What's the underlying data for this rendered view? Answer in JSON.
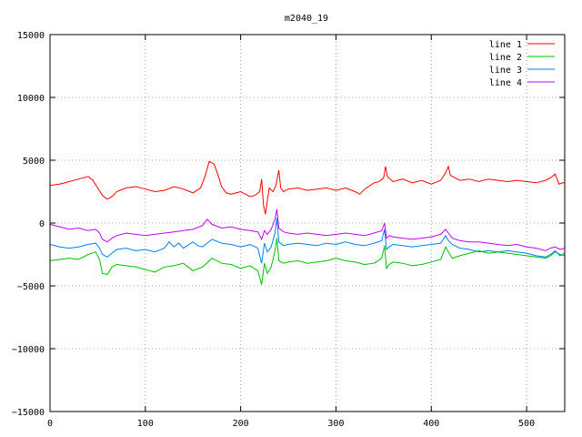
{
  "chart_data": {
    "type": "line",
    "title": "m2040_19",
    "xlabel": "",
    "ylabel": "",
    "xlim": [
      0,
      540
    ],
    "ylim": [
      -15000,
      15000
    ],
    "xticks": [
      0,
      100,
      200,
      300,
      400,
      500
    ],
    "yticks": [
      -15000,
      -10000,
      -5000,
      0,
      5000,
      10000,
      15000
    ],
    "xtick_labels": [
      "0",
      "100",
      "200",
      "300",
      "400",
      "500"
    ],
    "ytick_labels": [
      "−15000",
      "−10000",
      "−5000",
      "0",
      "5000",
      "10000",
      "15000"
    ],
    "grid": true,
    "legend_position": "top-right",
    "series": [
      {
        "name": "line 1",
        "color": "#ff0000",
        "points": [
          [
            0,
            3000
          ],
          [
            10,
            3100
          ],
          [
            20,
            3300
          ],
          [
            30,
            3500
          ],
          [
            40,
            3700
          ],
          [
            45,
            3400
          ],
          [
            50,
            2800
          ],
          [
            55,
            2200
          ],
          [
            60,
            1900
          ],
          [
            65,
            2100
          ],
          [
            70,
            2500
          ],
          [
            80,
            2800
          ],
          [
            90,
            2900
          ],
          [
            100,
            2700
          ],
          [
            110,
            2500
          ],
          [
            120,
            2600
          ],
          [
            130,
            2900
          ],
          [
            140,
            2700
          ],
          [
            150,
            2400
          ],
          [
            158,
            2800
          ],
          [
            163,
            3800
          ],
          [
            167,
            4900
          ],
          [
            172,
            4700
          ],
          [
            176,
            3900
          ],
          [
            180,
            2900
          ],
          [
            185,
            2400
          ],
          [
            190,
            2300
          ],
          [
            200,
            2500
          ],
          [
            210,
            2100
          ],
          [
            215,
            2200
          ],
          [
            220,
            2500
          ],
          [
            222,
            3500
          ],
          [
            224,
            1400
          ],
          [
            226,
            700
          ],
          [
            228,
            1800
          ],
          [
            230,
            2800
          ],
          [
            234,
            2500
          ],
          [
            237,
            3000
          ],
          [
            240,
            4200
          ],
          [
            242,
            2800
          ],
          [
            245,
            2500
          ],
          [
            250,
            2700
          ],
          [
            260,
            2800
          ],
          [
            270,
            2600
          ],
          [
            280,
            2700
          ],
          [
            290,
            2800
          ],
          [
            300,
            2600
          ],
          [
            310,
            2800
          ],
          [
            320,
            2500
          ],
          [
            325,
            2300
          ],
          [
            330,
            2700
          ],
          [
            340,
            3200
          ],
          [
            345,
            3300
          ],
          [
            350,
            3600
          ],
          [
            352,
            4500
          ],
          [
            354,
            3700
          ],
          [
            360,
            3300
          ],
          [
            370,
            3500
          ],
          [
            380,
            3200
          ],
          [
            390,
            3400
          ],
          [
            400,
            3100
          ],
          [
            410,
            3400
          ],
          [
            415,
            4000
          ],
          [
            418,
            4500
          ],
          [
            420,
            3800
          ],
          [
            430,
            3400
          ],
          [
            440,
            3500
          ],
          [
            450,
            3300
          ],
          [
            460,
            3500
          ],
          [
            470,
            3400
          ],
          [
            480,
            3300
          ],
          [
            490,
            3400
          ],
          [
            500,
            3300
          ],
          [
            510,
            3200
          ],
          [
            520,
            3400
          ],
          [
            525,
            3600
          ],
          [
            530,
            3900
          ],
          [
            534,
            3100
          ],
          [
            538,
            3200
          ],
          [
            540,
            3200
          ]
        ]
      },
      {
        "name": "line 2",
        "color": "#00c000",
        "points": [
          [
            0,
            -3000
          ],
          [
            10,
            -2900
          ],
          [
            20,
            -2800
          ],
          [
            30,
            -2900
          ],
          [
            40,
            -2500
          ],
          [
            48,
            -2300
          ],
          [
            52,
            -2900
          ],
          [
            55,
            -4000
          ],
          [
            60,
            -4100
          ],
          [
            65,
            -3500
          ],
          [
            70,
            -3300
          ],
          [
            80,
            -3400
          ],
          [
            90,
            -3500
          ],
          [
            100,
            -3700
          ],
          [
            110,
            -3900
          ],
          [
            120,
            -3500
          ],
          [
            130,
            -3400
          ],
          [
            140,
            -3200
          ],
          [
            150,
            -3800
          ],
          [
            160,
            -3500
          ],
          [
            170,
            -2800
          ],
          [
            180,
            -3200
          ],
          [
            190,
            -3300
          ],
          [
            200,
            -3600
          ],
          [
            210,
            -3400
          ],
          [
            218,
            -3800
          ],
          [
            222,
            -4900
          ],
          [
            225,
            -3200
          ],
          [
            228,
            -4000
          ],
          [
            232,
            -3500
          ],
          [
            236,
            -2200
          ],
          [
            238,
            -1200
          ],
          [
            240,
            -3000
          ],
          [
            245,
            -3200
          ],
          [
            250,
            -3100
          ],
          [
            260,
            -3000
          ],
          [
            270,
            -3200
          ],
          [
            280,
            -3100
          ],
          [
            290,
            -3000
          ],
          [
            300,
            -2800
          ],
          [
            310,
            -3000
          ],
          [
            320,
            -3100
          ],
          [
            330,
            -3300
          ],
          [
            340,
            -3200
          ],
          [
            348,
            -2800
          ],
          [
            351,
            -1800
          ],
          [
            353,
            -3600
          ],
          [
            356,
            -3300
          ],
          [
            360,
            -3100
          ],
          [
            370,
            -3200
          ],
          [
            380,
            -3400
          ],
          [
            390,
            -3300
          ],
          [
            400,
            -3100
          ],
          [
            410,
            -2900
          ],
          [
            415,
            -1900
          ],
          [
            418,
            -2300
          ],
          [
            422,
            -2800
          ],
          [
            430,
            -2600
          ],
          [
            440,
            -2400
          ],
          [
            450,
            -2200
          ],
          [
            460,
            -2400
          ],
          [
            470,
            -2300
          ],
          [
            480,
            -2400
          ],
          [
            490,
            -2500
          ],
          [
            500,
            -2600
          ],
          [
            510,
            -2700
          ],
          [
            520,
            -2800
          ],
          [
            525,
            -2600
          ],
          [
            530,
            -2300
          ],
          [
            535,
            -2500
          ],
          [
            540,
            -2600
          ]
        ]
      },
      {
        "name": "line 3",
        "color": "#0080ff",
        "points": [
          [
            0,
            -1700
          ],
          [
            10,
            -1900
          ],
          [
            20,
            -2000
          ],
          [
            30,
            -1900
          ],
          [
            40,
            -1700
          ],
          [
            48,
            -1600
          ],
          [
            52,
            -2000
          ],
          [
            55,
            -2500
          ],
          [
            60,
            -2700
          ],
          [
            65,
            -2400
          ],
          [
            70,
            -2100
          ],
          [
            80,
            -2000
          ],
          [
            90,
            -2200
          ],
          [
            100,
            -2100
          ],
          [
            110,
            -2300
          ],
          [
            120,
            -2000
          ],
          [
            125,
            -1500
          ],
          [
            130,
            -1900
          ],
          [
            135,
            -1600
          ],
          [
            140,
            -2000
          ],
          [
            150,
            -1500
          ],
          [
            155,
            -1800
          ],
          [
            160,
            -1900
          ],
          [
            170,
            -1300
          ],
          [
            180,
            -1600
          ],
          [
            190,
            -1700
          ],
          [
            200,
            -1900
          ],
          [
            210,
            -1700
          ],
          [
            218,
            -2000
          ],
          [
            222,
            -3200
          ],
          [
            225,
            -1600
          ],
          [
            228,
            -2300
          ],
          [
            232,
            -1900
          ],
          [
            236,
            -800
          ],
          [
            238,
            400
          ],
          [
            240,
            -1500
          ],
          [
            245,
            -1800
          ],
          [
            250,
            -1700
          ],
          [
            260,
            -1600
          ],
          [
            270,
            -1700
          ],
          [
            280,
            -1800
          ],
          [
            290,
            -1600
          ],
          [
            300,
            -1700
          ],
          [
            310,
            -1500
          ],
          [
            320,
            -1700
          ],
          [
            330,
            -1800
          ],
          [
            340,
            -1600
          ],
          [
            348,
            -1400
          ],
          [
            351,
            -500
          ],
          [
            353,
            -2100
          ],
          [
            356,
            -1900
          ],
          [
            360,
            -1700
          ],
          [
            370,
            -1800
          ],
          [
            380,
            -1900
          ],
          [
            390,
            -1800
          ],
          [
            400,
            -1700
          ],
          [
            410,
            -1600
          ],
          [
            415,
            -1000
          ],
          [
            418,
            -1400
          ],
          [
            422,
            -1700
          ],
          [
            430,
            -2000
          ],
          [
            440,
            -2100
          ],
          [
            450,
            -2300
          ],
          [
            460,
            -2200
          ],
          [
            470,
            -2300
          ],
          [
            480,
            -2200
          ],
          [
            490,
            -2300
          ],
          [
            500,
            -2400
          ],
          [
            510,
            -2600
          ],
          [
            520,
            -2700
          ],
          [
            525,
            -2500
          ],
          [
            530,
            -2200
          ],
          [
            535,
            -2600
          ],
          [
            540,
            -2400
          ]
        ]
      },
      {
        "name": "line 4",
        "color": "#c000ff",
        "points": [
          [
            0,
            -100
          ],
          [
            10,
            -300
          ],
          [
            20,
            -500
          ],
          [
            30,
            -400
          ],
          [
            40,
            -600
          ],
          [
            48,
            -500
          ],
          [
            52,
            -800
          ],
          [
            55,
            -1300
          ],
          [
            60,
            -1500
          ],
          [
            65,
            -1200
          ],
          [
            70,
            -1000
          ],
          [
            80,
            -800
          ],
          [
            90,
            -900
          ],
          [
            100,
            -1000
          ],
          [
            110,
            -900
          ],
          [
            120,
            -800
          ],
          [
            130,
            -700
          ],
          [
            140,
            -600
          ],
          [
            150,
            -500
          ],
          [
            160,
            -200
          ],
          [
            165,
            300
          ],
          [
            170,
            -100
          ],
          [
            180,
            -400
          ],
          [
            190,
            -300
          ],
          [
            200,
            -500
          ],
          [
            210,
            -600
          ],
          [
            218,
            -700
          ],
          [
            222,
            -1300
          ],
          [
            225,
            -600
          ],
          [
            228,
            -900
          ],
          [
            232,
            -500
          ],
          [
            236,
            300
          ],
          [
            238,
            1100
          ],
          [
            240,
            -400
          ],
          [
            245,
            -700
          ],
          [
            250,
            -800
          ],
          [
            260,
            -900
          ],
          [
            270,
            -800
          ],
          [
            280,
            -900
          ],
          [
            290,
            -1000
          ],
          [
            300,
            -900
          ],
          [
            310,
            -800
          ],
          [
            320,
            -900
          ],
          [
            330,
            -1000
          ],
          [
            340,
            -800
          ],
          [
            348,
            -600
          ],
          [
            351,
            0
          ],
          [
            353,
            -1200
          ],
          [
            356,
            -1000
          ],
          [
            360,
            -1100
          ],
          [
            370,
            -1200
          ],
          [
            380,
            -1300
          ],
          [
            390,
            -1200
          ],
          [
            400,
            -1100
          ],
          [
            410,
            -900
          ],
          [
            415,
            -500
          ],
          [
            418,
            -800
          ],
          [
            422,
            -1200
          ],
          [
            430,
            -1400
          ],
          [
            440,
            -1500
          ],
          [
            450,
            -1500
          ],
          [
            460,
            -1600
          ],
          [
            470,
            -1700
          ],
          [
            480,
            -1800
          ],
          [
            490,
            -1700
          ],
          [
            500,
            -1900
          ],
          [
            510,
            -2000
          ],
          [
            520,
            -2200
          ],
          [
            525,
            -2000
          ],
          [
            530,
            -1900
          ],
          [
            535,
            -2100
          ],
          [
            540,
            -2000
          ]
        ]
      }
    ]
  }
}
